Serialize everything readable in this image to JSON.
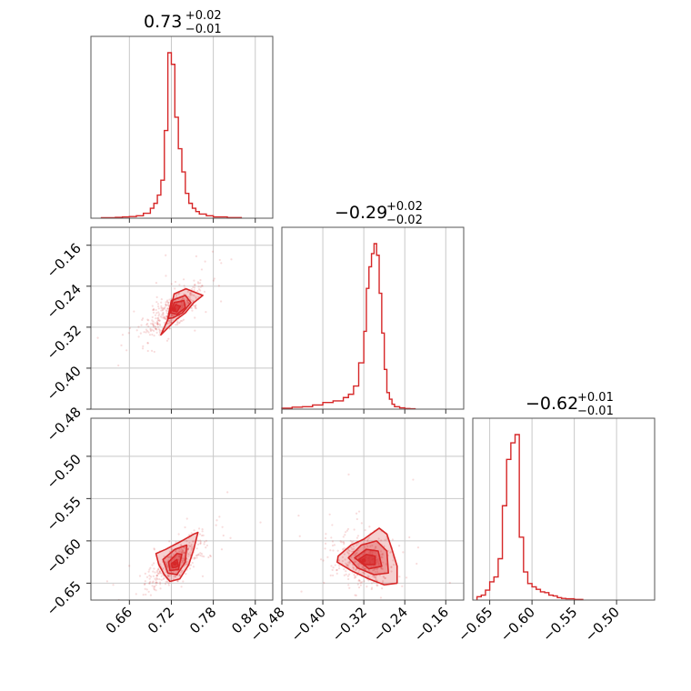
{
  "chart_data": {
    "type": "corner",
    "color": "#d62728",
    "parameters": [
      {
        "median": 0.73,
        "err_plus": 0.02,
        "err_minus": 0.01,
        "title_main": "0.73",
        "title_sup": "+0.02",
        "title_sub": "−0.01",
        "range": [
          0.605,
          0.865
        ],
        "ticks": [
          0.66,
          0.72,
          0.78,
          0.84
        ],
        "tick_labels": [
          "0.66",
          "0.72",
          "0.78",
          "0.84"
        ],
        "hist": {
          "edges": [
            0.62,
            0.63,
            0.64,
            0.65,
            0.66,
            0.67,
            0.68,
            0.69,
            0.695,
            0.7,
            0.705,
            0.71,
            0.715,
            0.72,
            0.725,
            0.73,
            0.735,
            0.74,
            0.745,
            0.75,
            0.755,
            0.76,
            0.77,
            0.78,
            0.8,
            0.82
          ],
          "heights": [
            0.003,
            0.003,
            0.005,
            0.008,
            0.01,
            0.015,
            0.03,
            0.06,
            0.09,
            0.14,
            0.23,
            0.53,
            1.0,
            0.93,
            0.61,
            0.42,
            0.28,
            0.15,
            0.09,
            0.06,
            0.04,
            0.025,
            0.015,
            0.008,
            0.004
          ]
        }
      },
      {
        "median": -0.29,
        "err_plus": 0.02,
        "err_minus": 0.02,
        "title_main": "−0.29",
        "title_sup": "+0.02",
        "title_sub": "−0.02",
        "range": [
          -0.48,
          -0.125
        ],
        "ticks": [
          -0.48,
          -0.4,
          -0.32,
          -0.24,
          -0.16
        ],
        "tick_labels": [
          "−0.48",
          "−0.40",
          "−0.32",
          "−0.24",
          "−0.16"
        ],
        "hist": {
          "edges": [
            -0.48,
            -0.46,
            -0.44,
            -0.42,
            -0.4,
            -0.38,
            -0.36,
            -0.35,
            -0.34,
            -0.33,
            -0.32,
            -0.315,
            -0.31,
            -0.305,
            -0.3,
            -0.295,
            -0.29,
            -0.285,
            -0.28,
            -0.275,
            -0.27,
            -0.265,
            -0.26,
            -0.25,
            -0.24,
            -0.23,
            -0.22
          ],
          "heights": [
            0.006,
            0.012,
            0.015,
            0.025,
            0.04,
            0.05,
            0.07,
            0.09,
            0.14,
            0.28,
            0.47,
            0.73,
            0.86,
            0.94,
            1.0,
            0.93,
            0.7,
            0.46,
            0.24,
            0.1,
            0.06,
            0.03,
            0.015,
            0.008,
            0.004,
            0.002
          ]
        }
      },
      {
        "median": -0.62,
        "err_plus": 0.01,
        "err_minus": 0.01,
        "title_main": "−0.62",
        "title_sup": "+0.01",
        "title_sub": "−0.01",
        "range": [
          -0.67,
          -0.455
        ],
        "ticks": [
          -0.65,
          -0.6,
          -0.55,
          -0.5
        ],
        "tick_labels": [
          "−0.65",
          "−0.60",
          "−0.55",
          "−0.50"
        ],
        "y_ticks": [
          -0.65,
          -0.6,
          -0.55,
          -0.5
        ],
        "y_tick_labels": [
          "−0.65",
          "−0.60",
          "−0.55",
          "−0.50"
        ],
        "hist": {
          "edges": [
            -0.665,
            -0.66,
            -0.655,
            -0.65,
            -0.645,
            -0.64,
            -0.635,
            -0.63,
            -0.625,
            -0.62,
            -0.615,
            -0.61,
            -0.605,
            -0.6,
            -0.595,
            -0.59,
            -0.585,
            -0.58,
            -0.575,
            -0.57,
            -0.565,
            -0.56,
            -0.55,
            -0.54
          ],
          "heights": [
            0.02,
            0.03,
            0.06,
            0.11,
            0.14,
            0.25,
            0.57,
            0.85,
            0.95,
            1.0,
            0.38,
            0.17,
            0.1,
            0.08,
            0.065,
            0.05,
            0.045,
            0.03,
            0.025,
            0.015,
            0.01,
            0.008,
            0.004
          ]
        }
      }
    ],
    "row1_y_ticks": [
      -0.48,
      -0.4,
      -0.32,
      -0.24,
      -0.16
    ],
    "row1_y_tick_labels": [
      "−0.48",
      "−0.40",
      "−0.32",
      "−0.24",
      "−0.16"
    ],
    "pairs": [
      {
        "x_param": 0,
        "y_param": 1,
        "peak": [
          0.724,
          -0.285
        ],
        "contours": [
          [
            [
              0.705,
              -0.335
            ],
            [
              0.715,
              -0.305
            ],
            [
              0.719,
              -0.285
            ],
            [
              0.724,
              -0.255
            ],
            [
              0.741,
              -0.245
            ],
            [
              0.765,
              -0.258
            ],
            [
              0.752,
              -0.272
            ],
            [
              0.74,
              -0.292
            ],
            [
              0.728,
              -0.304
            ],
            [
              0.716,
              -0.32
            ],
            [
              0.705,
              -0.335
            ]
          ],
          [
            [
              0.715,
              -0.303
            ],
            [
              0.72,
              -0.268
            ],
            [
              0.74,
              -0.258
            ],
            [
              0.748,
              -0.272
            ],
            [
              0.736,
              -0.292
            ],
            [
              0.722,
              -0.302
            ],
            [
              0.715,
              -0.303
            ]
          ],
          [
            [
              0.719,
              -0.292
            ],
            [
              0.724,
              -0.272
            ],
            [
              0.738,
              -0.268
            ],
            [
              0.74,
              -0.282
            ],
            [
              0.728,
              -0.295
            ],
            [
              0.719,
              -0.292
            ]
          ],
          [
            [
              0.722,
              -0.288
            ],
            [
              0.726,
              -0.276
            ],
            [
              0.733,
              -0.279
            ],
            [
              0.728,
              -0.29
            ],
            [
              0.722,
              -0.288
            ]
          ]
        ]
      },
      {
        "x_param": 0,
        "y_param": 2,
        "peak": [
          0.725,
          -0.627
        ],
        "contours": [
          [
            [
              0.698,
              -0.615
            ],
            [
              0.712,
              -0.61
            ],
            [
              0.735,
              -0.6
            ],
            [
              0.752,
              -0.592
            ],
            [
              0.758,
              -0.59
            ],
            [
              0.752,
              -0.61
            ],
            [
              0.745,
              -0.628
            ],
            [
              0.732,
              -0.645
            ],
            [
              0.718,
              -0.648
            ],
            [
              0.71,
              -0.64
            ],
            [
              0.702,
              -0.628
            ],
            [
              0.698,
              -0.615
            ]
          ],
          [
            [
              0.708,
              -0.622
            ],
            [
              0.725,
              -0.61
            ],
            [
              0.742,
              -0.605
            ],
            [
              0.74,
              -0.625
            ],
            [
              0.728,
              -0.64
            ],
            [
              0.715,
              -0.638
            ],
            [
              0.708,
              -0.622
            ]
          ],
          [
            [
              0.716,
              -0.625
            ],
            [
              0.728,
              -0.615
            ],
            [
              0.735,
              -0.616
            ],
            [
              0.73,
              -0.634
            ],
            [
              0.718,
              -0.635
            ],
            [
              0.716,
              -0.625
            ]
          ],
          [
            [
              0.72,
              -0.627
            ],
            [
              0.728,
              -0.622
            ],
            [
              0.73,
              -0.63
            ],
            [
              0.722,
              -0.632
            ],
            [
              0.72,
              -0.627
            ]
          ]
        ]
      },
      {
        "x_param": 1,
        "y_param": 2,
        "peak": [
          -0.32,
          -0.623
        ],
        "contours": [
          [
            [
              -0.37,
              -0.618
            ],
            [
              -0.345,
              -0.605
            ],
            [
              -0.32,
              -0.598
            ],
            [
              -0.29,
              -0.585
            ],
            [
              -0.275,
              -0.592
            ],
            [
              -0.265,
              -0.61
            ],
            [
              -0.255,
              -0.63
            ],
            [
              -0.255,
              -0.65
            ],
            [
              -0.28,
              -0.652
            ],
            [
              -0.31,
              -0.645
            ],
            [
              -0.345,
              -0.635
            ],
            [
              -0.372,
              -0.625
            ],
            [
              -0.37,
              -0.618
            ]
          ],
          [
            [
              -0.35,
              -0.62
            ],
            [
              -0.325,
              -0.605
            ],
            [
              -0.295,
              -0.6
            ],
            [
              -0.275,
              -0.612
            ],
            [
              -0.272,
              -0.638
            ],
            [
              -0.3,
              -0.64
            ],
            [
              -0.332,
              -0.632
            ],
            [
              -0.35,
              -0.62
            ]
          ],
          [
            [
              -0.338,
              -0.62
            ],
            [
              -0.315,
              -0.61
            ],
            [
              -0.292,
              -0.612
            ],
            [
              -0.285,
              -0.63
            ],
            [
              -0.31,
              -0.633
            ],
            [
              -0.338,
              -0.62
            ]
          ],
          [
            [
              -0.33,
              -0.622
            ],
            [
              -0.315,
              -0.616
            ],
            [
              -0.298,
              -0.618
            ],
            [
              -0.298,
              -0.628
            ],
            [
              -0.318,
              -0.628
            ],
            [
              -0.33,
              -0.622
            ]
          ]
        ]
      }
    ]
  }
}
